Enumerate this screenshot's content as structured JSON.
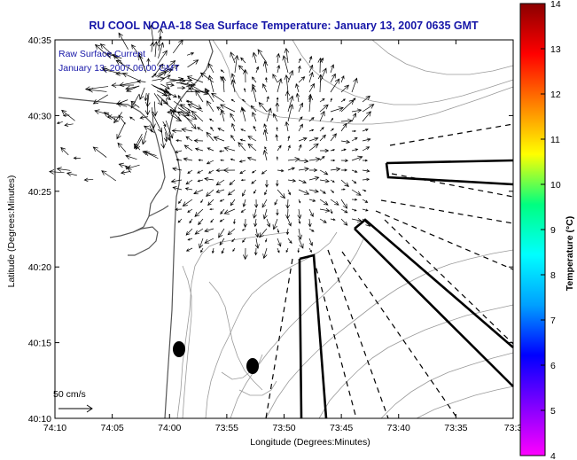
{
  "title": "RU COOL  NOAA-18  Sea Surface Temperature:  January 13, 2007 0635 GMT",
  "legend": {
    "line1": "Raw Surface Current",
    "line2": "January 13, 2007 06:00 GMT"
  },
  "scale_label": "50 cm/s",
  "xlabel": "Longitude (Degrees:Minutes)",
  "ylabel": "Latitude (Degrees:Minutes)",
  "x_ticks": [
    "74:10",
    "74:05",
    "74:00",
    "73:55",
    "73:50",
    "73:45",
    "73:40",
    "73:35",
    "73:3"
  ],
  "y_ticks": [
    "40:35",
    "40:30",
    "40:25",
    "40:20",
    "40:15",
    "40:10"
  ],
  "colorbar": {
    "label": "Temperature (°C)",
    "ticks": [
      "14",
      "13",
      "12",
      "11",
      "10",
      "9",
      "8",
      "7",
      "6",
      "5",
      "4"
    ],
    "colors": [
      "#8b0000",
      "#ff0000",
      "#ff8000",
      "#ffff00",
      "#00ff80",
      "#00ffff",
      "#00a0ff",
      "#0000ff",
      "#7f00ff",
      "#ff00ff"
    ]
  }
}
